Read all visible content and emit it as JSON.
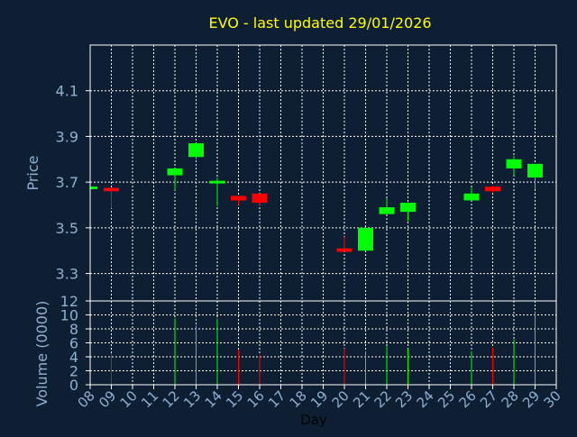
{
  "chart_data": [
    {
      "type": "candlestick",
      "title": "EVO - last updated 29/01/2026",
      "xlabel": "",
      "ylabel": "Price",
      "ylim": [
        3.18,
        4.3
      ],
      "yticks": [
        3.3,
        3.5,
        3.7,
        3.9,
        4.1
      ],
      "ytick_labels": [
        "3.3",
        "3.5",
        "3.7",
        "3.9",
        "4.1"
      ],
      "grid": true,
      "up_color": "#00ff00",
      "down_color": "#ff0000",
      "candles": [
        {
          "day": 8,
          "open": 3.675,
          "close": 3.675,
          "high": 3.675,
          "low": 3.675
        },
        {
          "day": 9,
          "open": 3.675,
          "close": 3.66,
          "high": 3.675,
          "low": 3.585
        },
        {
          "day": 12,
          "open": 3.73,
          "close": 3.76,
          "high": 3.76,
          "low": 3.665
        },
        {
          "day": 13,
          "open": 3.81,
          "close": 3.87,
          "high": 3.87,
          "low": 3.8
        },
        {
          "day": 14,
          "open": 3.7,
          "close": 3.7,
          "high": 3.72,
          "low": 3.595
        },
        {
          "day": 15,
          "open": 3.64,
          "close": 3.62,
          "high": 3.64,
          "low": 3.6
        },
        {
          "day": 16,
          "open": 3.65,
          "close": 3.61,
          "high": 3.65,
          "low": 3.6
        },
        {
          "day": 20,
          "open": 3.41,
          "close": 3.395,
          "high": 3.46,
          "low": 3.395
        },
        {
          "day": 21,
          "open": 3.4,
          "close": 3.5,
          "high": 3.5,
          "low": 3.4
        },
        {
          "day": 22,
          "open": 3.56,
          "close": 3.59,
          "high": 3.63,
          "low": 3.56
        },
        {
          "day": 23,
          "open": 3.57,
          "close": 3.61,
          "high": 3.61,
          "low": 3.53
        },
        {
          "day": 26,
          "open": 3.62,
          "close": 3.65,
          "high": 3.675,
          "low": 3.62
        },
        {
          "day": 27,
          "open": 3.68,
          "close": 3.66,
          "high": 3.685,
          "low": 3.655
        },
        {
          "day": 28,
          "open": 3.76,
          "close": 3.8,
          "high": 3.815,
          "low": 3.73
        },
        {
          "day": 29,
          "open": 3.72,
          "close": 3.78,
          "high": 3.78,
          "low": 3.67
        }
      ]
    },
    {
      "type": "bar",
      "xlabel": "Day",
      "ylabel": "Volume (0000)",
      "ylim": [
        0,
        12
      ],
      "yticks": [
        0,
        2,
        4,
        6,
        8,
        10,
        12
      ],
      "ytick_labels": [
        "0",
        "2",
        "4",
        "6",
        "8",
        "10",
        "12"
      ],
      "xlim": [
        8,
        30
      ],
      "xticks": [
        8,
        9,
        10,
        11,
        12,
        13,
        14,
        15,
        16,
        17,
        18,
        19,
        20,
        21,
        22,
        23,
        24,
        25,
        26,
        27,
        28,
        29,
        30
      ],
      "xtick_labels": [
        "08",
        "09",
        "10",
        "11",
        "12",
        "13",
        "14",
        "15",
        "16",
        "17",
        "18",
        "19",
        "20",
        "21",
        "22",
        "23",
        "24",
        "25",
        "26",
        "27",
        "28",
        "29",
        "30"
      ],
      "grid": true,
      "bars": [
        {
          "day": 9,
          "value": 4.5,
          "direction": "down"
        },
        {
          "day": 12,
          "value": 9.5,
          "direction": "up"
        },
        {
          "day": 13,
          "value": 8.5,
          "direction": "up"
        },
        {
          "day": 14,
          "value": 9.5,
          "direction": "up"
        },
        {
          "day": 15,
          "value": 5.0,
          "direction": "down"
        },
        {
          "day": 16,
          "value": 4.3,
          "direction": "down"
        },
        {
          "day": 20,
          "value": 5.2,
          "direction": "down"
        },
        {
          "day": 21,
          "value": 4.8,
          "direction": "up"
        },
        {
          "day": 22,
          "value": 5.5,
          "direction": "up"
        },
        {
          "day": 23,
          "value": 5.2,
          "direction": "up"
        },
        {
          "day": 26,
          "value": 4.8,
          "direction": "up"
        },
        {
          "day": 27,
          "value": 5.3,
          "direction": "down"
        },
        {
          "day": 28,
          "value": 6.5,
          "direction": "up"
        },
        {
          "day": 29,
          "value": 10.5,
          "direction": "up"
        }
      ]
    }
  ],
  "colors": {
    "background": "#0f1f33",
    "title": "#ffff00",
    "axis_text": "#8fb0d0",
    "frame": "#ffffff",
    "grid": "#ffffff"
  }
}
